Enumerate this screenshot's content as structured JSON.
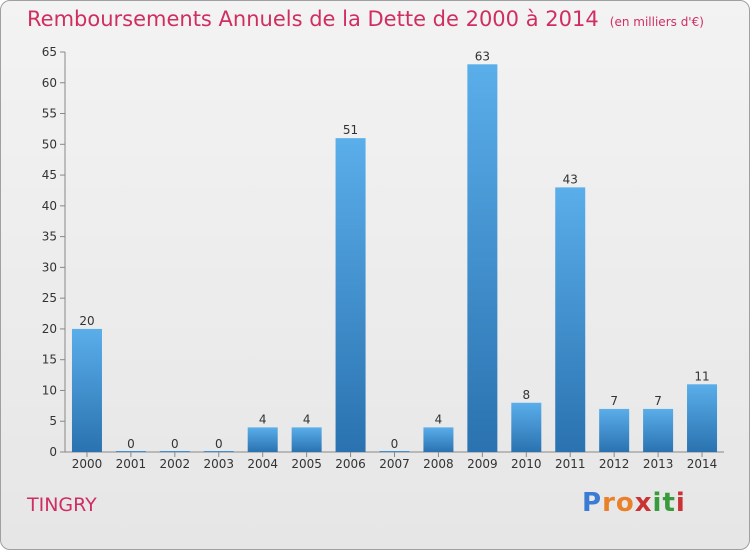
{
  "title": "Remboursements Annuels de la Dette de 2000 à 2014",
  "unit_note": "(en milliers d'€)",
  "town": "TINGRY",
  "logo": {
    "text": "Proxiti",
    "colors": [
      "#3a7bd5",
      "#e8812a",
      "#e8812a",
      "#c93333",
      "#3a9b3a",
      "#3a9b3a",
      "#c93333"
    ]
  },
  "colors": {
    "accent": "#d02e60",
    "bar_top": "#5aaeea",
    "bar_bottom": "#2a72b0"
  },
  "chart_data": {
    "type": "bar",
    "title": "Remboursements Annuels de la Dette de 2000 à 2014",
    "xlabel": "",
    "ylabel": "",
    "categories": [
      "2000",
      "2001",
      "2002",
      "2003",
      "2004",
      "2005",
      "2006",
      "2007",
      "2008",
      "2009",
      "2010",
      "2011",
      "2012",
      "2013",
      "2014"
    ],
    "values": [
      20,
      0,
      0,
      0,
      4,
      4,
      51,
      0,
      4,
      63,
      8,
      43,
      7,
      7,
      11
    ],
    "ylim": [
      0,
      65
    ],
    "yticks": [
      0,
      5,
      10,
      15,
      20,
      25,
      30,
      35,
      40,
      45,
      50,
      55,
      60,
      65
    ],
    "grid": false,
    "legend": "none"
  }
}
